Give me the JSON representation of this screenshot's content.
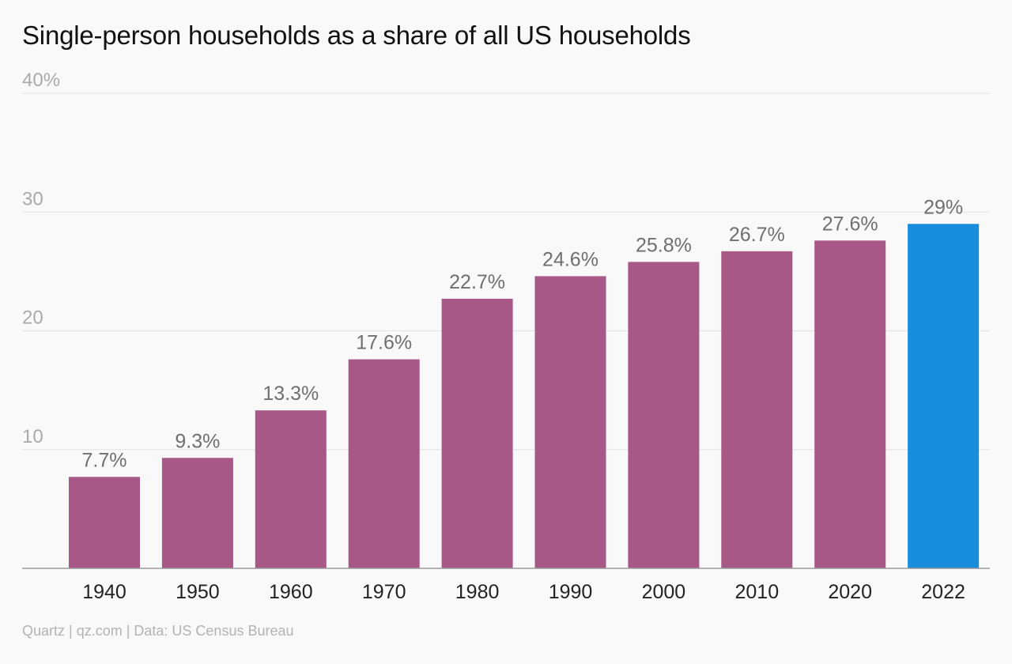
{
  "chart_data": {
    "type": "bar",
    "title": "Single-person households as a share of all US households",
    "categories": [
      "1940",
      "1950",
      "1960",
      "1970",
      "1980",
      "1990",
      "2000",
      "2010",
      "2020",
      "2022"
    ],
    "values": [
      7.7,
      9.3,
      13.3,
      17.6,
      22.7,
      24.6,
      25.8,
      26.7,
      27.6,
      29
    ],
    "value_labels": [
      "7.7%",
      "9.3%",
      "13.3%",
      "17.6%",
      "22.7%",
      "24.6%",
      "25.8%",
      "26.7%",
      "27.6%",
      "29%"
    ],
    "ylim": [
      0,
      40
    ],
    "yticks": [
      10,
      20,
      30,
      40
    ],
    "ytick_labels": [
      "10",
      "20",
      "30",
      "40%"
    ],
    "grid": true,
    "colors": {
      "bar": "#a85886",
      "highlight_bar": "#178ddb",
      "highlight_index": 9
    }
  },
  "footer": {
    "source": "Quartz | qz.com | Data: US Census Bureau"
  }
}
